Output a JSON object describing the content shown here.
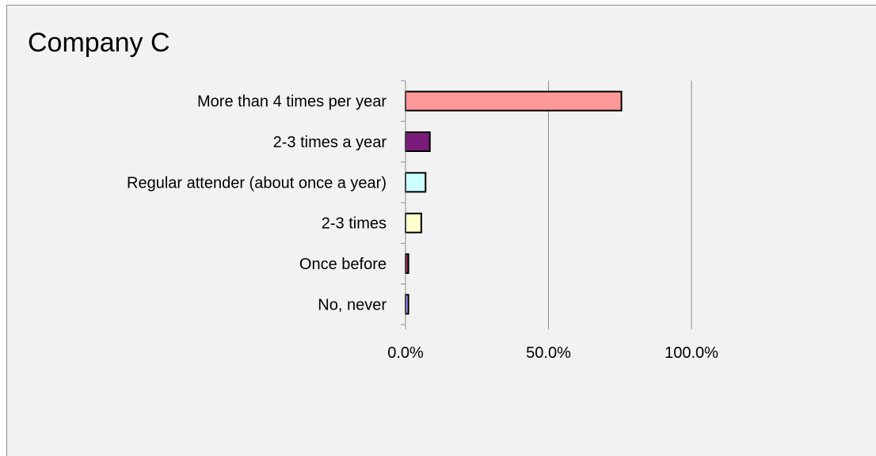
{
  "chart_data": {
    "type": "bar",
    "orientation": "horizontal",
    "title": "Company C",
    "categories": [
      "More than 4 times per year",
      "2-3 times a year",
      "Regular attender (about once a year)",
      "2-3 times",
      "Once before",
      "No, never"
    ],
    "values": [
      75.5,
      8.5,
      7.0,
      5.5,
      1.0,
      1.0
    ],
    "colors": [
      "#ff9999",
      "#7b1c7b",
      "#ccffff",
      "#ffffcc",
      "#a0204a",
      "#9999ff"
    ],
    "xlim": [
      0,
      100
    ],
    "x_ticks": [
      0,
      50,
      100
    ],
    "x_tick_labels": [
      "0.0%",
      "50.0%",
      "100.0%"
    ],
    "xlabel": "",
    "ylabel": "",
    "grid": "vertical gridlines at major ticks",
    "legend": "none"
  }
}
